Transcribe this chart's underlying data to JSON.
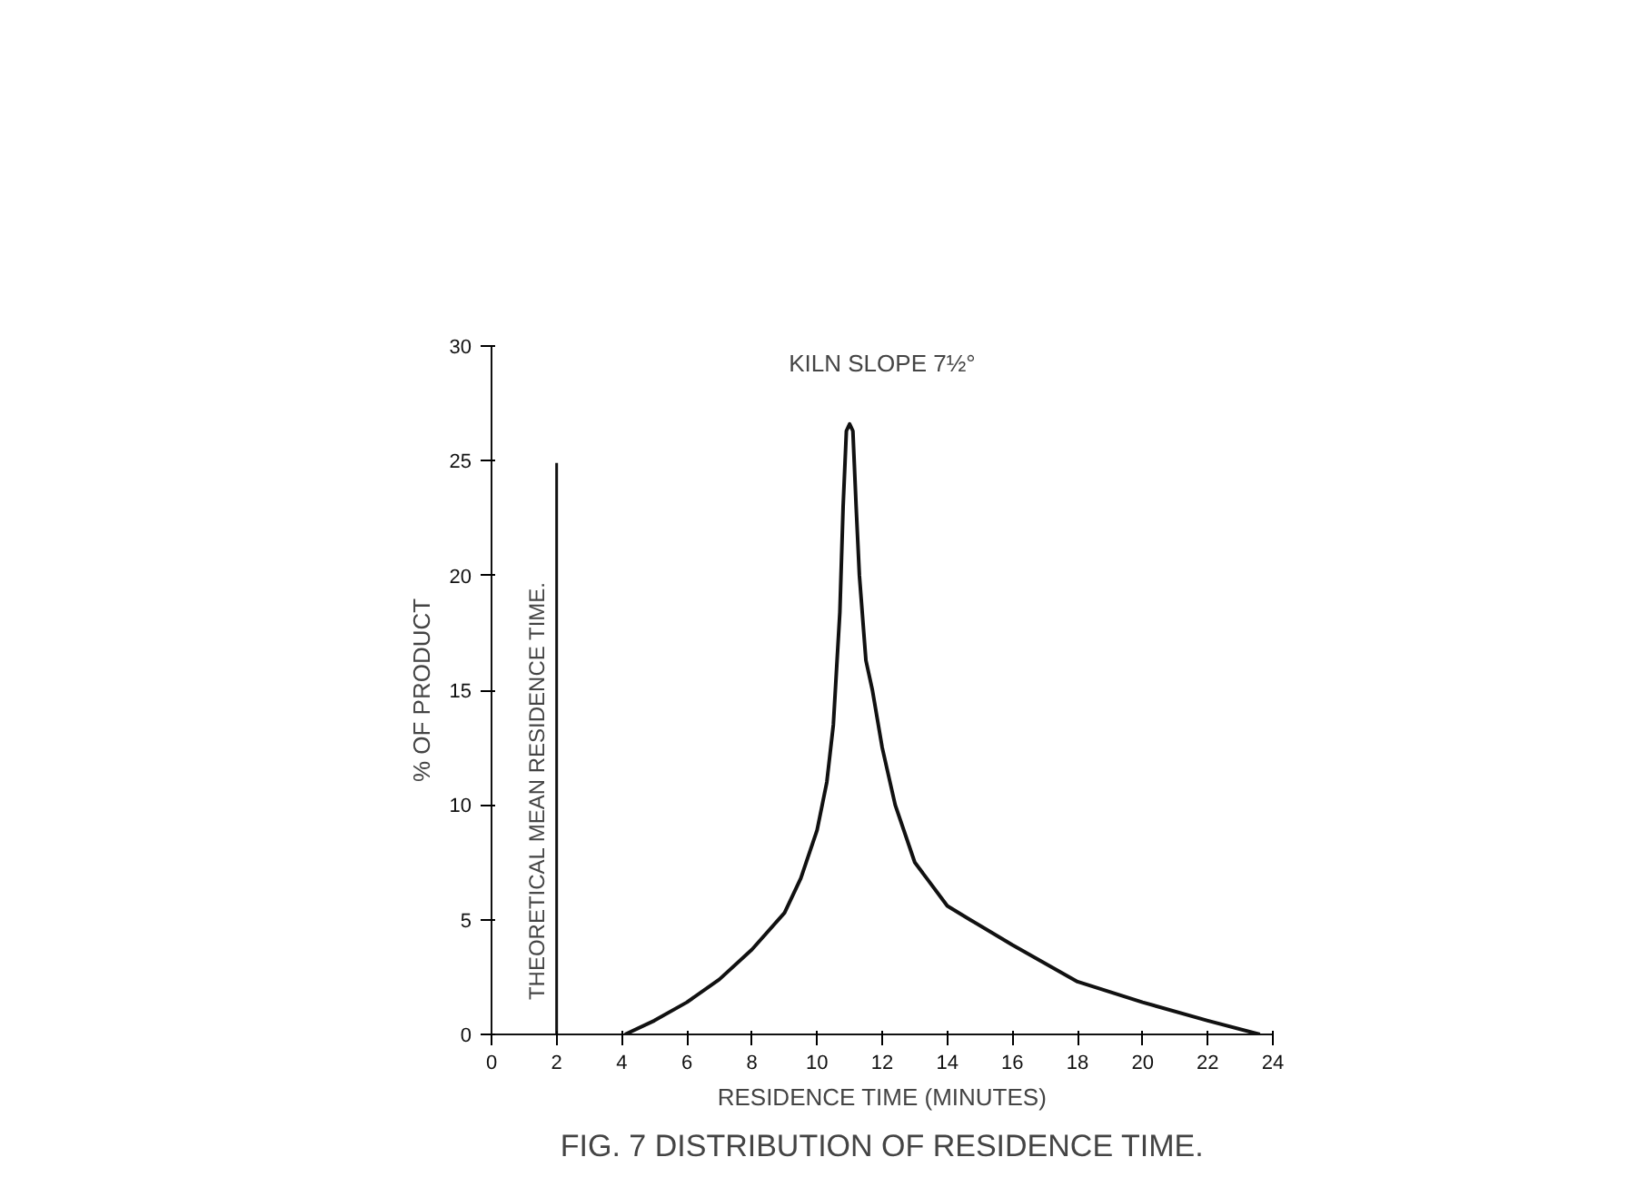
{
  "chart_data": {
    "type": "line",
    "title": "FIG. 7 DISTRIBUTION OF RESIDENCE TIME.",
    "xlabel": "RESIDENCE TIME (MINUTES)",
    "ylabel": "% OF PRODUCT",
    "x": [
      4.1,
      5,
      6,
      7,
      8,
      9,
      9.5,
      10,
      10.3,
      10.5,
      10.7,
      10.8,
      10.9,
      11,
      11.1,
      11.2,
      11.3,
      11.5,
      11.7,
      12,
      12.4,
      13,
      14,
      14.7,
      16,
      18,
      20,
      22,
      23.6
    ],
    "series": [
      {
        "color": "#111111",
        "values": [
          0,
          0.6,
          1.4,
          2.4,
          3.7,
          5.3,
          6.8,
          8.9,
          11,
          13.5,
          18.4,
          23,
          26.3,
          26.6,
          26.3,
          23,
          20,
          16.3,
          15,
          12.5,
          10,
          7.5,
          5.6,
          5,
          3.9,
          2.3,
          1.4,
          0.6,
          0
        ]
      }
    ],
    "xlim": [
      0,
      24
    ],
    "ylim": [
      0,
      30
    ],
    "xticks": [
      0,
      2,
      4,
      6,
      8,
      10,
      12,
      14,
      16,
      18,
      20,
      22,
      24
    ],
    "yticks": [
      0,
      5,
      10,
      15,
      20,
      25,
      30
    ],
    "annotations": [
      "KILN SLOPE 7½°"
    ],
    "ref_lines": [
      {
        "axis": "x",
        "value": 2,
        "label": "THEORETICAL MEAN RESIDENCE TIME."
      }
    ],
    "grid": false,
    "line_style": "solid"
  }
}
